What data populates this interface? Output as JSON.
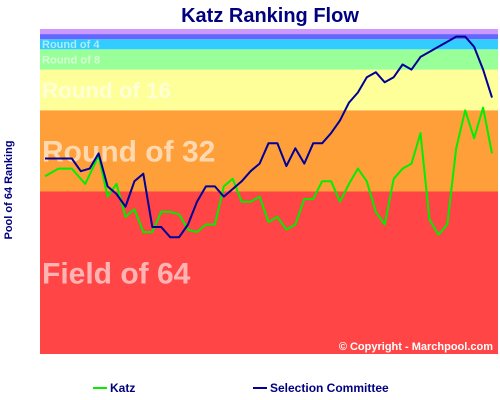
{
  "chart_data": {
    "type": "line",
    "title": "Katz Ranking Flow",
    "ylabel": "Pool of 64 Ranking",
    "xlabel": "",
    "ylim": [
      0,
      64
    ],
    "grid": false,
    "legend_placement": "bottom",
    "bands": [
      {
        "label": "Field of 64",
        "from": 64,
        "to": 32,
        "color": "#ff4545"
      },
      {
        "label": "Round of 32",
        "from": 32,
        "to": 16,
        "color": "#ff9f3a"
      },
      {
        "label": "Round of 16",
        "from": 16,
        "to": 8,
        "color": "#ffff99"
      },
      {
        "label": "Round of 8",
        "from": 8,
        "to": 4,
        "color": "#99ff99"
      },
      {
        "label": "Round of 4",
        "from": 4,
        "to": 2,
        "color": "#33ccff"
      },
      {
        "label": "",
        "from": 2,
        "to": 1,
        "color": "#6666ff"
      },
      {
        "label": "",
        "from": 1,
        "to": 0,
        "color": "#cc99ff"
      }
    ],
    "series": [
      {
        "name": "Katz",
        "color": "#00ee00",
        "x": [
          0,
          3,
          6,
          9,
          12,
          14,
          16,
          18,
          20,
          22,
          24,
          26,
          28,
          30,
          32,
          34,
          36,
          38,
          40,
          42,
          44,
          46,
          48,
          50,
          52,
          54,
          56,
          58,
          60,
          62,
          64,
          66,
          68,
          70,
          72,
          74,
          76,
          78,
          80,
          82,
          84,
          86,
          88,
          90,
          92,
          94,
          96,
          98,
          100
        ],
        "values": [
          29,
          27.5,
          27.5,
          30.5,
          25,
          33,
          30.5,
          37,
          35.5,
          40,
          40,
          36,
          36,
          36.5,
          39.5,
          40,
          38.5,
          38.5,
          31,
          29.5,
          34,
          34,
          33,
          38,
          37,
          39.5,
          38.5,
          33.5,
          33.5,
          30,
          30,
          34,
          30.5,
          27.5,
          30,
          36,
          38.5,
          29.5,
          27.5,
          26.5,
          20.5,
          37.5,
          40.5,
          38.5,
          23.5,
          16,
          21.5,
          15.5,
          24.5
        ]
      },
      {
        "name": "Selection Committee",
        "color": "#000099",
        "x": [
          0,
          3,
          6,
          8,
          10,
          12,
          14,
          16,
          18,
          20,
          22,
          24,
          26,
          28,
          30,
          32,
          34,
          36,
          38,
          40,
          42,
          44,
          46,
          48,
          50,
          52,
          54,
          56,
          58,
          60,
          62,
          64,
          66,
          68,
          70,
          72,
          74,
          76,
          78,
          80,
          82,
          84,
          86,
          88,
          90,
          92,
          94,
          96,
          98,
          100
        ],
        "values": [
          25.5,
          25.5,
          25.5,
          28,
          27.5,
          24.5,
          31,
          32.5,
          35,
          30,
          28.5,
          39,
          39,
          41,
          41,
          38.5,
          34,
          31,
          31,
          33,
          31.5,
          30,
          28,
          26.5,
          22.5,
          22.5,
          27,
          23.5,
          26.5,
          22.5,
          22.5,
          20.5,
          18,
          14.5,
          12.5,
          9.5,
          8.5,
          10.5,
          9.5,
          7,
          8,
          5.5,
          4.5,
          3.5,
          2.5,
          1.5,
          1.5,
          3.5,
          8,
          13.5
        ]
      }
    ],
    "annotations": [
      "© Copyright - Marchpool.com"
    ]
  }
}
